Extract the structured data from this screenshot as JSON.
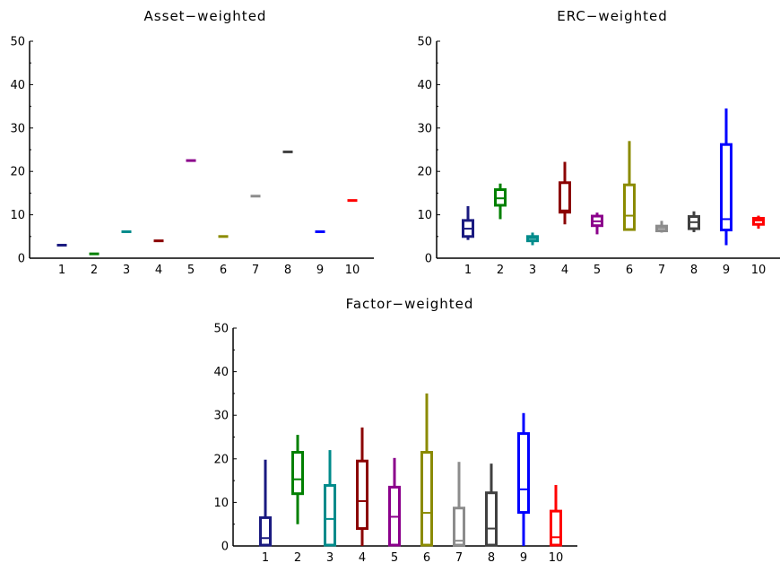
{
  "chart_data": [
    {
      "type": "boxplot",
      "title": "Asset−weighted",
      "categories": [
        "1",
        "2",
        "3",
        "4",
        "5",
        "6",
        "7",
        "8",
        "9",
        "10"
      ],
      "ylim": [
        0,
        50
      ],
      "yticks": [
        "0",
        "10",
        "20",
        "30",
        "40",
        "50"
      ],
      "grid": false,
      "boxes": [
        {
          "whisker_low": 3.0,
          "q1": 3.0,
          "median": 3.0,
          "q3": 3.0,
          "whisker_high": 3.0,
          "color": "#1a1a80"
        },
        {
          "whisker_low": 1.0,
          "q1": 1.0,
          "median": 1.0,
          "q3": 1.0,
          "whisker_high": 1.0,
          "color": "#008000"
        },
        {
          "whisker_low": 6.1,
          "q1": 6.1,
          "median": 6.1,
          "q3": 6.1,
          "whisker_high": 6.1,
          "color": "#008b8b"
        },
        {
          "whisker_low": 4.0,
          "q1": 4.0,
          "median": 4.0,
          "q3": 4.0,
          "whisker_high": 4.0,
          "color": "#8b0000"
        },
        {
          "whisker_low": 22.5,
          "q1": 22.5,
          "median": 22.5,
          "q3": 22.5,
          "whisker_high": 22.5,
          "color": "#8b008b"
        },
        {
          "whisker_low": 5.0,
          "q1": 5.0,
          "median": 5.0,
          "q3": 5.0,
          "whisker_high": 5.0,
          "color": "#8b8b00"
        },
        {
          "whisker_low": 14.3,
          "q1": 14.3,
          "median": 14.3,
          "q3": 14.3,
          "whisker_high": 14.3,
          "color": "#8c8c8c"
        },
        {
          "whisker_low": 24.5,
          "q1": 24.5,
          "median": 24.5,
          "q3": 24.5,
          "whisker_high": 24.5,
          "color": "#404040"
        },
        {
          "whisker_low": 6.1,
          "q1": 6.1,
          "median": 6.1,
          "q3": 6.1,
          "whisker_high": 6.1,
          "color": "#0000ff"
        },
        {
          "whisker_low": 13.3,
          "q1": 13.3,
          "median": 13.3,
          "q3": 13.3,
          "whisker_high": 13.3,
          "color": "#ff0000"
        }
      ]
    },
    {
      "type": "boxplot",
      "title": "ERC−weighted",
      "categories": [
        "1",
        "2",
        "3",
        "4",
        "5",
        "6",
        "7",
        "8",
        "9",
        "10"
      ],
      "ylim": [
        0,
        50
      ],
      "yticks": [
        "0",
        "10",
        "20",
        "30",
        "40",
        "50"
      ],
      "grid": false,
      "boxes": [
        {
          "whisker_low": 4.2,
          "q1": 5.0,
          "median": 6.8,
          "q3": 8.7,
          "whisker_high": 12.0,
          "color": "#1a1a80"
        },
        {
          "whisker_low": 9.0,
          "q1": 12.2,
          "median": 13.8,
          "q3": 15.8,
          "whisker_high": 17.2,
          "color": "#008000"
        },
        {
          "whisker_low": 3.0,
          "q1": 4.0,
          "median": 4.6,
          "q3": 5.0,
          "whisker_high": 5.9,
          "color": "#008b8b"
        },
        {
          "whisker_low": 7.8,
          "q1": 10.6,
          "median": 11.0,
          "q3": 17.4,
          "whisker_high": 22.2,
          "color": "#8b0000"
        },
        {
          "whisker_low": 5.5,
          "q1": 7.5,
          "median": 8.5,
          "q3": 9.7,
          "whisker_high": 10.5,
          "color": "#8b008b"
        },
        {
          "whisker_low": 6.5,
          "q1": 6.6,
          "median": 9.8,
          "q3": 16.9,
          "whisker_high": 27.0,
          "color": "#8b8b00"
        },
        {
          "whisker_low": 5.9,
          "q1": 6.3,
          "median": 6.9,
          "q3": 7.4,
          "whisker_high": 8.6,
          "color": "#8c8c8c"
        },
        {
          "whisker_low": 6.0,
          "q1": 6.8,
          "median": 8.3,
          "q3": 9.6,
          "whisker_high": 10.8,
          "color": "#404040"
        },
        {
          "whisker_low": 3.0,
          "q1": 6.5,
          "median": 9.0,
          "q3": 26.2,
          "whisker_high": 34.5,
          "color": "#0000ff"
        },
        {
          "whisker_low": 6.8,
          "q1": 7.8,
          "median": 8.7,
          "q3": 9.2,
          "whisker_high": 9.8,
          "color": "#ff0000"
        }
      ]
    },
    {
      "type": "boxplot",
      "title": "Factor−weighted",
      "categories": [
        "1",
        "2",
        "3",
        "4",
        "5",
        "6",
        "7",
        "8",
        "9",
        "10"
      ],
      "ylim": [
        0,
        50
      ],
      "yticks": [
        "0",
        "10",
        "20",
        "30",
        "40",
        "50"
      ],
      "grid": false,
      "boxes": [
        {
          "whisker_low": 0.0,
          "q1": 0.2,
          "median": 1.8,
          "q3": 6.5,
          "whisker_high": 19.8,
          "color": "#1a1a80"
        },
        {
          "whisker_low": 5.0,
          "q1": 12.0,
          "median": 15.3,
          "q3": 21.5,
          "whisker_high": 25.5,
          "color": "#008000"
        },
        {
          "whisker_low": 0.0,
          "q1": 0.2,
          "median": 6.2,
          "q3": 13.9,
          "whisker_high": 22.0,
          "color": "#008b8b"
        },
        {
          "whisker_low": 0.0,
          "q1": 4.0,
          "median": 10.3,
          "q3": 19.5,
          "whisker_high": 27.2,
          "color": "#8b0000"
        },
        {
          "whisker_low": 0.0,
          "q1": 0.2,
          "median": 6.7,
          "q3": 13.5,
          "whisker_high": 20.2,
          "color": "#8b008b"
        },
        {
          "whisker_low": 0.0,
          "q1": 0.2,
          "median": 7.6,
          "q3": 21.5,
          "whisker_high": 35.0,
          "color": "#8b8b00"
        },
        {
          "whisker_low": 0.0,
          "q1": 0.2,
          "median": 1.2,
          "q3": 8.7,
          "whisker_high": 19.3,
          "color": "#8c8c8c"
        },
        {
          "whisker_low": 0.0,
          "q1": 0.2,
          "median": 4.0,
          "q3": 12.2,
          "whisker_high": 18.9,
          "color": "#404040"
        },
        {
          "whisker_low": 0.0,
          "q1": 7.7,
          "median": 13.0,
          "q3": 25.8,
          "whisker_high": 30.5,
          "color": "#0000ff"
        },
        {
          "whisker_low": 0.0,
          "q1": 0.2,
          "median": 2.0,
          "q3": 8.0,
          "whisker_high": 14.0,
          "color": "#ff0000"
        }
      ]
    }
  ]
}
